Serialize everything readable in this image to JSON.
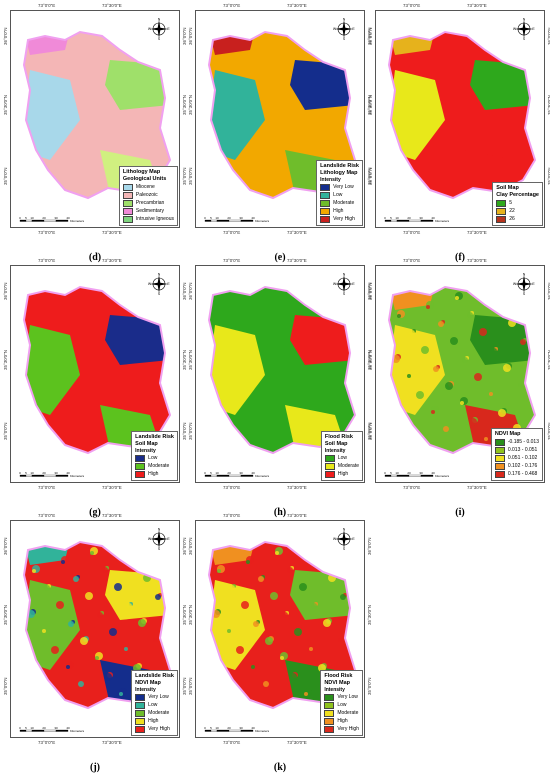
{
  "ticks": {
    "lon_left": "73°0'0\"E",
    "lon_right": "73°30'0\"E",
    "lat_top": "36°0'0\"N",
    "lat_mid": "35°30'0\"N",
    "lat_bot": "35°0'0\"N"
  },
  "compass": {
    "n": "N",
    "s": "S",
    "e": "E",
    "w": "W"
  },
  "scale": {
    "labels": [
      "0",
      "5",
      "10",
      "20",
      "30",
      "40"
    ],
    "unit": "Kilometers"
  },
  "panels": [
    {
      "caption": "(d)",
      "legend": {
        "title": "Lithology Map",
        "subtitle": "Geological Units",
        "rows": [
          {
            "label": "Miocene",
            "color": "#a8d8ea"
          },
          {
            "label": "Paleozoic",
            "color": "#f4b6b6"
          },
          {
            "label": "Precambrian",
            "color": "#9fe06a"
          },
          {
            "label": "Sedimentary",
            "color": "#f08ad8"
          },
          {
            "label": "Intrusive Igneous",
            "color": "#7fd47f"
          }
        ]
      },
      "colors": [
        "#f4b6b6",
        "#a8d8ea",
        "#9fe06a",
        "#f08ad8",
        "#d0f080"
      ]
    },
    {
      "caption": "(e)",
      "legend": {
        "title": "Landslide Risk",
        "subtitle": "Lithology Map",
        "subtitle2": "Intensity",
        "rows": [
          {
            "label": "Very Low",
            "color": "#142d8c"
          },
          {
            "label": "Low",
            "color": "#31b39a"
          },
          {
            "label": "Moderate",
            "color": "#6fbd2b"
          },
          {
            "label": "High",
            "color": "#f2a800"
          },
          {
            "label": "Very High",
            "color": "#c8201e"
          }
        ]
      },
      "colors": [
        "#f2a800",
        "#31b39a",
        "#142d8c",
        "#c8201e",
        "#6fbd2b"
      ]
    },
    {
      "caption": "(f)",
      "legend": {
        "title": "Soil Map",
        "subtitle": "Clay Percentage",
        "rows": [
          {
            "label": "5",
            "color": "#2ea81c"
          },
          {
            "label": "22",
            "color": "#e6b21c"
          },
          {
            "label": "26",
            "color": "#b5321c"
          }
        ]
      },
      "colors": [
        "#ee1c1c",
        "#e8e81a",
        "#2ea81c",
        "#e6b21c",
        "#ee1c1c"
      ]
    },
    {
      "caption": "(g)",
      "legend": {
        "title": "Landslide Risk",
        "subtitle": "Soil Map",
        "subtitle2": "Intensity",
        "rows": [
          {
            "label": "Low",
            "color": "#1a2c8a"
          },
          {
            "label": "Moderate",
            "color": "#5cc21e"
          },
          {
            "label": "High",
            "color": "#ee1c1c"
          }
        ]
      },
      "colors": [
        "#ee1c1c",
        "#5cc21e",
        "#1a2c8a",
        "#ee1c1c",
        "#5cc21e"
      ]
    },
    {
      "caption": "(h)",
      "legend": {
        "title": "Flood Risk",
        "subtitle": "Soil Map",
        "subtitle2": "Intensity",
        "rows": [
          {
            "label": "Low",
            "color": "#2ea81c"
          },
          {
            "label": "Moderate",
            "color": "#e8e81a"
          },
          {
            "label": "High",
            "color": "#ee1c1c"
          }
        ]
      },
      "colors": [
        "#2ea81c",
        "#e8e81a",
        "#ee1c1c",
        "#2ea81c",
        "#e8e81a"
      ]
    },
    {
      "caption": "(i)",
      "legend": {
        "title": "NDVI Map",
        "rows": [
          {
            "label": "-0.185 - 0.013",
            "color": "#2a8f1c"
          },
          {
            "label": "0.013 - 0.051",
            "color": "#8fc21e"
          },
          {
            "label": "0.051 - 0.102",
            "color": "#f0e020"
          },
          {
            "label": "0.102 - 0.176",
            "color": "#f09020"
          },
          {
            "label": "0.176 - 0.468",
            "color": "#d8281c"
          }
        ]
      },
      "colors": [
        "#6fbd2b",
        "#f0e020",
        "#2a8f1c",
        "#f09020",
        "#d8281c"
      ]
    },
    {
      "caption": "(j)",
      "legend": {
        "title": "Landslide Risk",
        "subtitle": "NDVI Map",
        "subtitle2": "Intensity",
        "rows": [
          {
            "label": "Very Low",
            "color": "#142d8c"
          },
          {
            "label": "Low",
            "color": "#31b39a"
          },
          {
            "label": "Moderate",
            "color": "#6fbd2b"
          },
          {
            "label": "High",
            "color": "#f0e020"
          },
          {
            "label": "Very High",
            "color": "#e8201c"
          }
        ]
      },
      "colors": [
        "#e8201c",
        "#6fbd2b",
        "#f0e020",
        "#31b39a",
        "#142d8c"
      ]
    },
    {
      "caption": "(k)",
      "legend": {
        "title": "Flood Risk",
        "subtitle": "NDVI Map",
        "subtitle2": "Intensity",
        "rows": [
          {
            "label": "Very Low",
            "color": "#2a8f1c"
          },
          {
            "label": "Low",
            "color": "#8fc21e"
          },
          {
            "label": "Moderate",
            "color": "#f0e020"
          },
          {
            "label": "High",
            "color": "#f09020"
          },
          {
            "label": "Very High",
            "color": "#d8281c"
          }
        ]
      },
      "colors": [
        "#e8201c",
        "#f0e020",
        "#6fbd2b",
        "#f09020",
        "#2a8f1c"
      ]
    }
  ]
}
